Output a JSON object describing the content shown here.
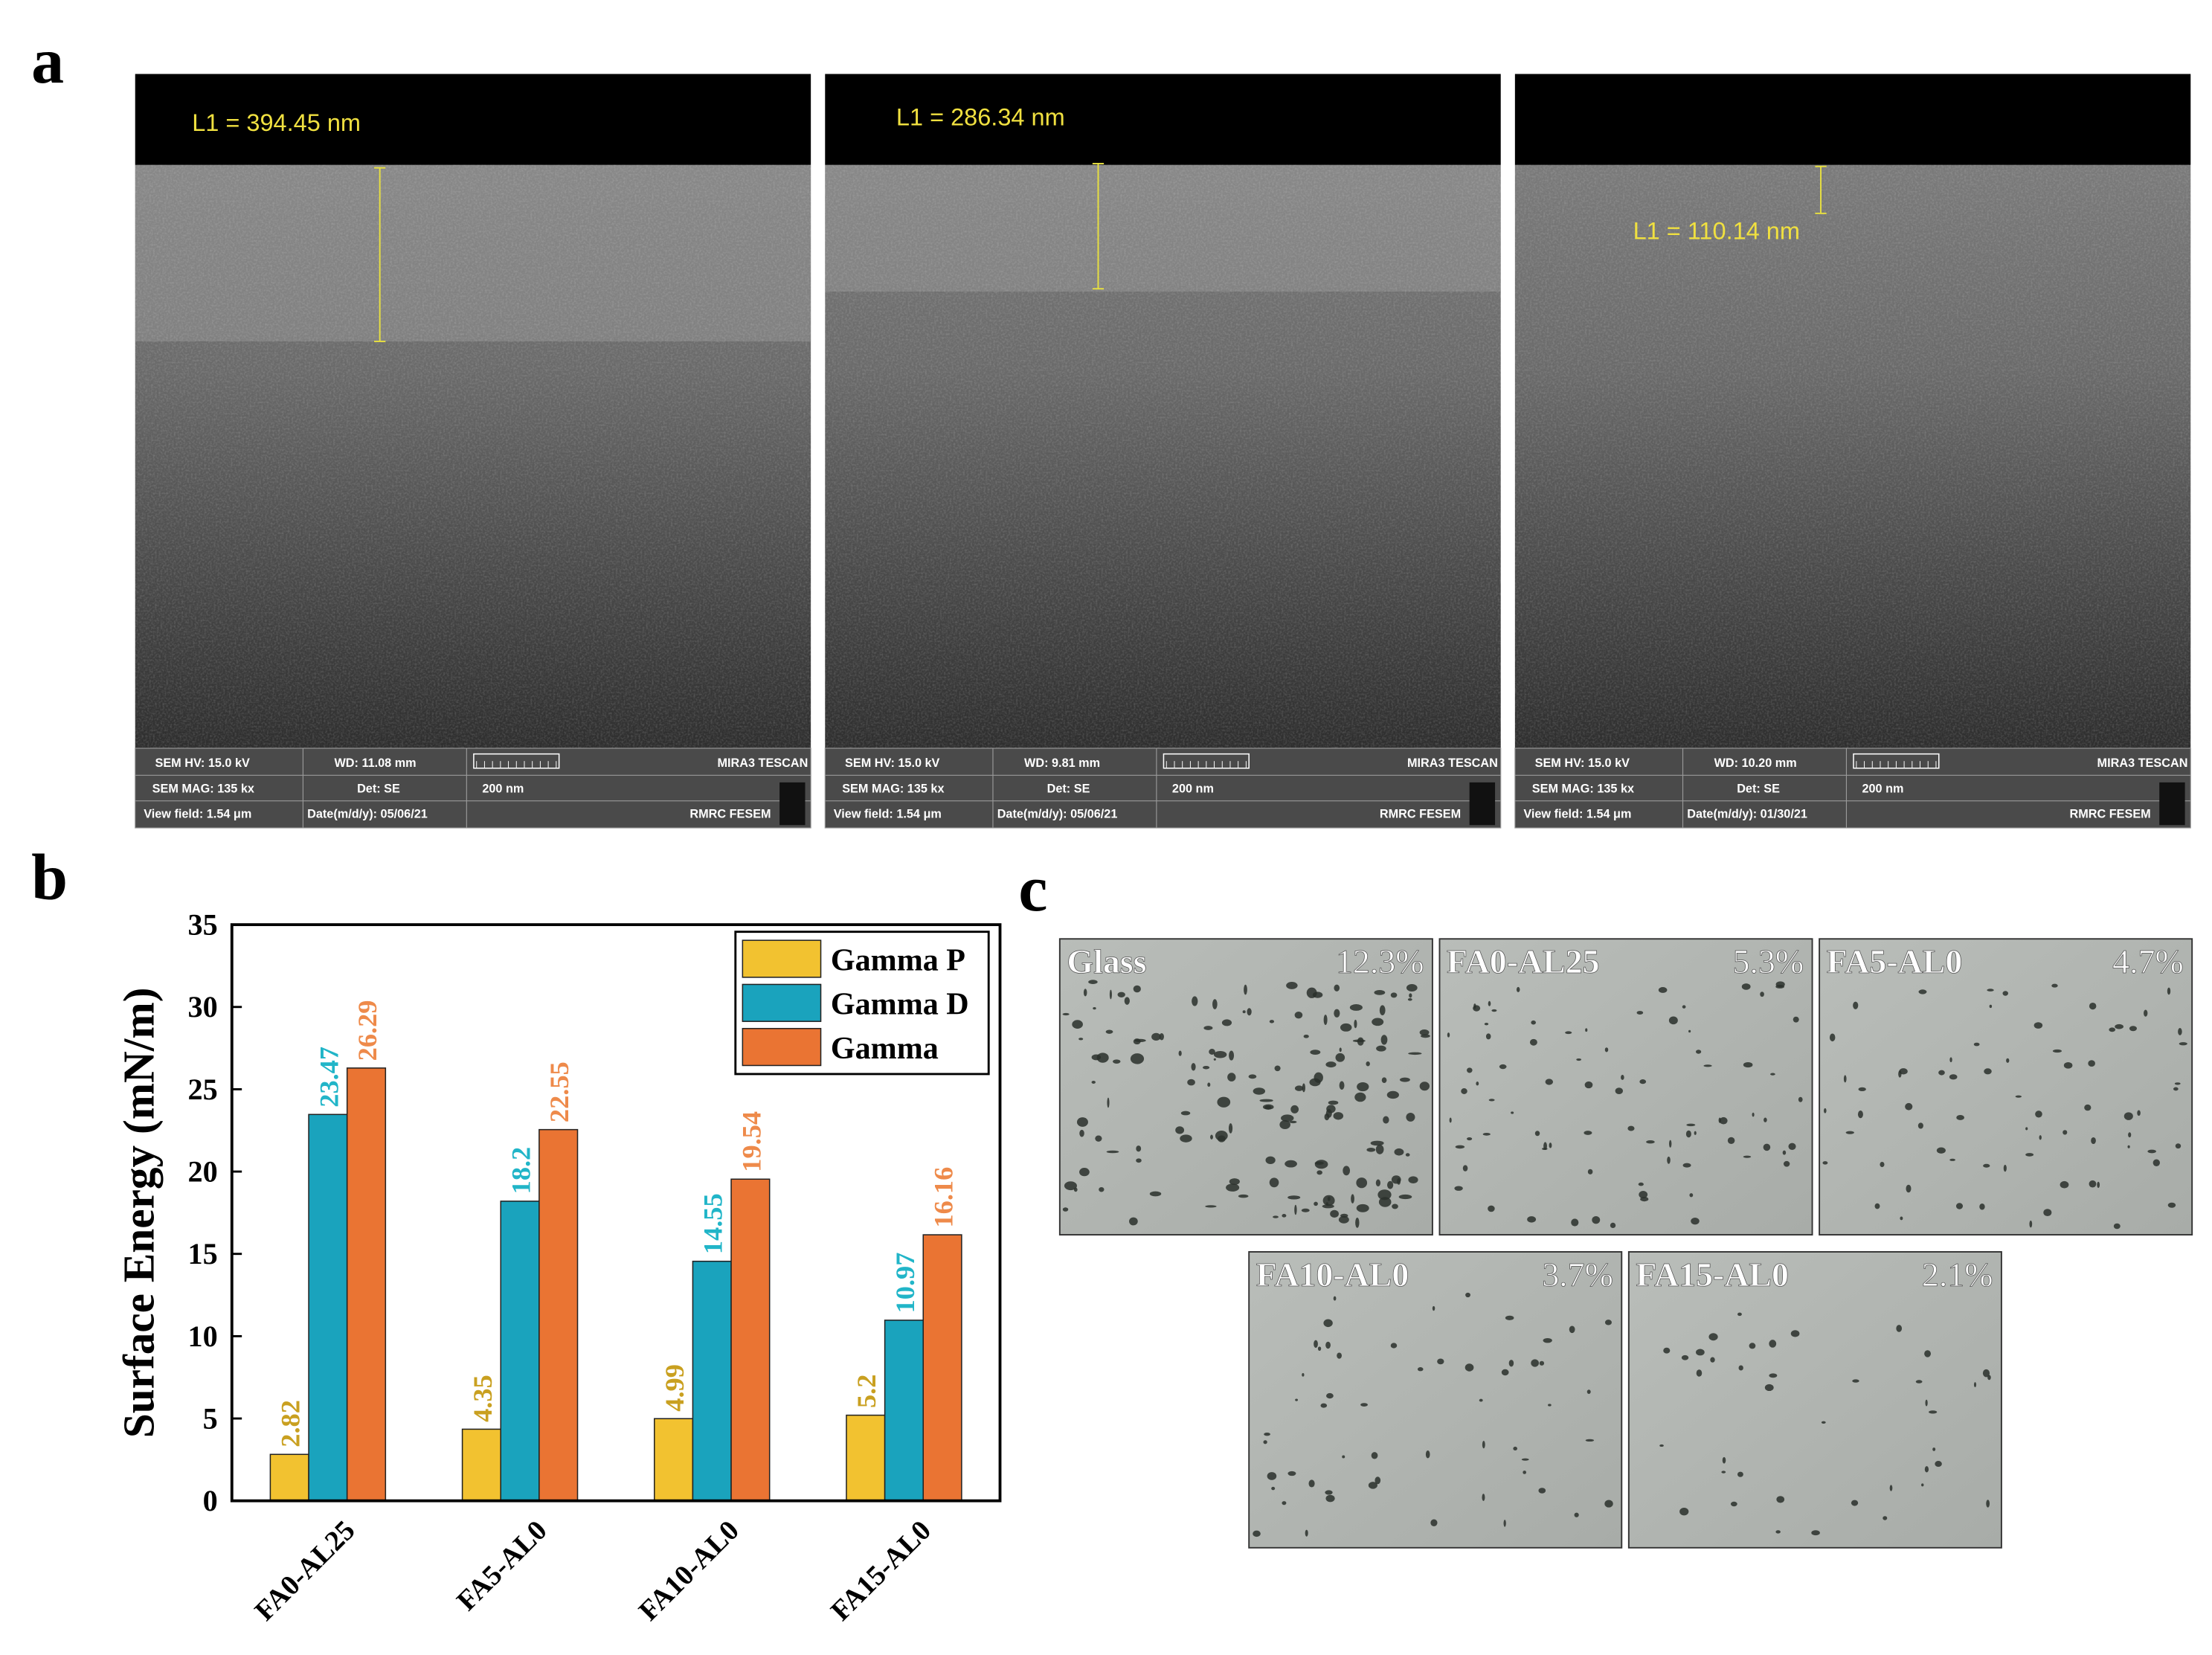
{
  "panel_labels": [
    "a",
    "b",
    "c"
  ],
  "sem_images": [
    {
      "measurement": "L1 = 394.45 nm",
      "info": [
        "SEM HV: 15.0 kV",
        "WD: 11.08 mm",
        "MIRA3 TESCAN",
        "SEM MAG: 135 kx",
        "Det: SE",
        "200 nm",
        "View field: 1.54 μm",
        "Date(m/d/y): 05/06/21",
        "RMRC FESEM"
      ]
    },
    {
      "measurement": "L1 = 286.34 nm",
      "info": [
        "SEM HV: 15.0 kV",
        "WD: 9.81 mm",
        "MIRA3 TESCAN",
        "SEM MAG: 135 kx",
        "Det: SE",
        "200 nm",
        "View field: 1.54 μm",
        "Date(m/d/y): 05/06/21",
        "RMRC FESEM"
      ]
    },
    {
      "measurement": "L1 = 110.14 nm",
      "info": [
        "SEM HV: 15.0 kV",
        "WD: 10.20 mm",
        "MIRA3 TESCAN",
        "SEM MAG: 135 kx",
        "Det: SE",
        "200 nm",
        "View field: 1.54 μm",
        "Date(m/d/y): 01/30/21",
        "RMRC FESEM"
      ]
    }
  ],
  "chart_data": {
    "type": "bar",
    "y_label": "Surface Energy (mN/m)",
    "categories": [
      "FA0-AL25",
      "FA5-AL0",
      "FA10-AL0",
      "FA15-AL0"
    ],
    "series": [
      {
        "name": "Gamma P",
        "color": "#f2c230",
        "label_color": "#c9a020",
        "values": [
          2.82,
          4.35,
          4.99,
          5.2
        ]
      },
      {
        "name": "Gamma D",
        "color": "#1aa3bd",
        "label_color": "#21b5c8",
        "values": [
          23.47,
          18.2,
          14.55,
          10.97
        ]
      },
      {
        "name": "Gamma",
        "color": "#ea7433",
        "label_color": "#ee8a4a",
        "values": [
          26.29,
          22.55,
          19.54,
          16.16
        ]
      }
    ],
    "ylim": [
      0,
      35
    ],
    "yticks": [
      0,
      5,
      10,
      15,
      20,
      25,
      30,
      35
    ],
    "legend": "top-right"
  },
  "micrographs": [
    {
      "label": "Glass",
      "coverage": "12.3%"
    },
    {
      "label": "FA0-AL25",
      "coverage": "5.3%"
    },
    {
      "label": "FA5-AL0",
      "coverage": "4.7%"
    },
    {
      "label": "FA10-AL0",
      "coverage": "3.7%"
    },
    {
      "label": "FA15-AL0",
      "coverage": "2.1%"
    }
  ]
}
